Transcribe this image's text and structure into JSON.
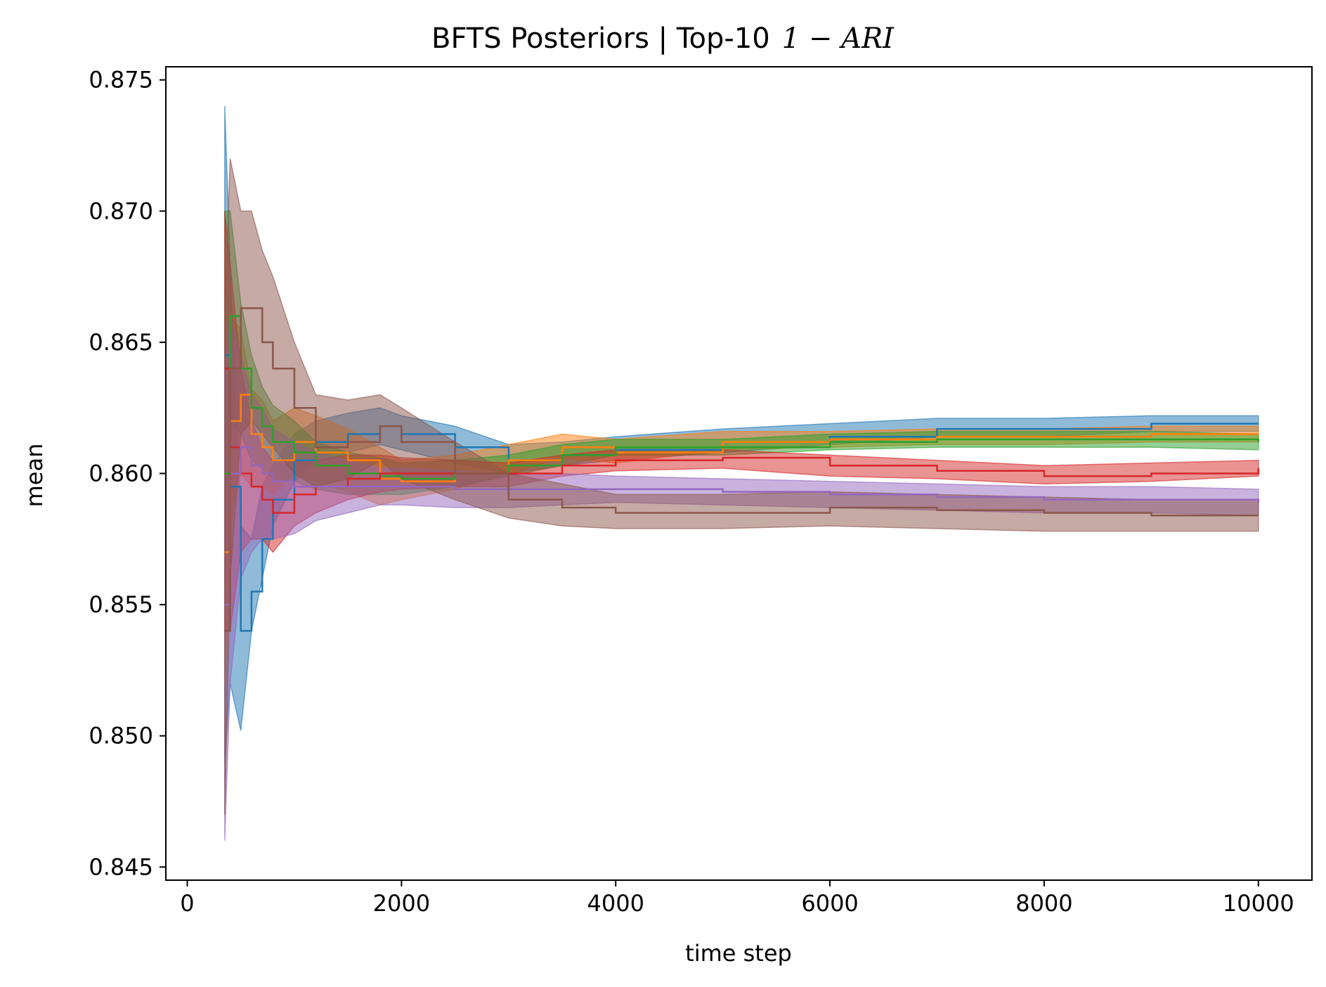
{
  "chart_data": {
    "type": "line",
    "title": "BFTS Posteriors | Top-10",
    "title_math": "1 − ARI",
    "xlabel": "time step",
    "ylabel": "mean",
    "xlim": [
      -200,
      10500
    ],
    "ylim": [
      0.8445,
      0.8755
    ],
    "xticks": [
      0,
      2000,
      4000,
      6000,
      8000,
      10000
    ],
    "xtick_labels": [
      "0",
      "2000",
      "4000",
      "6000",
      "8000",
      "10000"
    ],
    "yticks": [
      0.845,
      0.85,
      0.855,
      0.86,
      0.865,
      0.87,
      0.875
    ],
    "ytick_labels": [
      "0.845",
      "0.850",
      "0.855",
      "0.860",
      "0.865",
      "0.870",
      "0.875"
    ],
    "grid": false,
    "legend": "none",
    "x": [
      350,
      400,
      500,
      600,
      700,
      800,
      1000,
      1200,
      1500,
      1800,
      2000,
      2500,
      3000,
      3500,
      4000,
      5000,
      6000,
      7000,
      8000,
      9000,
      10000
    ],
    "series": [
      {
        "color": "#1f77b4",
        "mean": [
          0.8645,
          0.8595,
          0.854,
          0.8555,
          0.8575,
          0.859,
          0.8605,
          0.8612,
          0.8615,
          0.8618,
          0.8615,
          0.861,
          0.8605,
          0.8607,
          0.8609,
          0.8612,
          0.8614,
          0.8617,
          0.8617,
          0.8619,
          0.8619
        ],
        "lower": [
          0.849,
          0.852,
          0.8502,
          0.854,
          0.856,
          0.858,
          0.8597,
          0.8604,
          0.8608,
          0.8611,
          0.8609,
          0.8604,
          0.86,
          0.8603,
          0.8605,
          0.8608,
          0.8611,
          0.8614,
          0.8614,
          0.8616,
          0.8616
        ],
        "upper": [
          0.874,
          0.868,
          0.858,
          0.8575,
          0.8595,
          0.8603,
          0.8615,
          0.862,
          0.8623,
          0.8625,
          0.8622,
          0.8618,
          0.8611,
          0.8612,
          0.8614,
          0.8617,
          0.8619,
          0.8621,
          0.8621,
          0.8622,
          0.8622
        ]
      },
      {
        "color": "#ff7f0e",
        "mean": [
          0.857,
          0.862,
          0.863,
          0.8615,
          0.861,
          0.8605,
          0.8612,
          0.8608,
          0.8605,
          0.8598,
          0.8597,
          0.86,
          0.8605,
          0.861,
          0.8608,
          0.8612,
          0.8613,
          0.8614,
          0.8614,
          0.8615,
          0.8615
        ],
        "lower": [
          0.852,
          0.858,
          0.86,
          0.8595,
          0.8595,
          0.8592,
          0.86,
          0.8597,
          0.8593,
          0.8588,
          0.859,
          0.8594,
          0.86,
          0.8606,
          0.8604,
          0.8609,
          0.861,
          0.8611,
          0.8611,
          0.8612,
          0.8612
        ],
        "upper": [
          0.862,
          0.866,
          0.8655,
          0.8632,
          0.8628,
          0.862,
          0.8625,
          0.8622,
          0.8617,
          0.861,
          0.8605,
          0.8607,
          0.8611,
          0.8615,
          0.8613,
          0.8616,
          0.8616,
          0.8617,
          0.8617,
          0.8618,
          0.8618
        ]
      },
      {
        "color": "#2ca02c",
        "mean": [
          0.86,
          0.866,
          0.864,
          0.8625,
          0.8618,
          0.8612,
          0.8608,
          0.8603,
          0.86,
          0.8599,
          0.8598,
          0.86,
          0.8603,
          0.8607,
          0.861,
          0.861,
          0.8612,
          0.8613,
          0.8613,
          0.8613,
          0.8612
        ],
        "lower": [
          0.856,
          0.862,
          0.8615,
          0.8605,
          0.8602,
          0.8598,
          0.8597,
          0.8594,
          0.8592,
          0.8592,
          0.8592,
          0.8595,
          0.8599,
          0.8603,
          0.8607,
          0.8607,
          0.8609,
          0.861,
          0.861,
          0.861,
          0.8609
        ],
        "upper": [
          0.87,
          0.87,
          0.8665,
          0.8645,
          0.8633,
          0.8626,
          0.862,
          0.8612,
          0.8608,
          0.8606,
          0.8604,
          0.8605,
          0.8607,
          0.8611,
          0.8613,
          0.8613,
          0.8615,
          0.8616,
          0.8616,
          0.8616,
          0.8615
        ]
      },
      {
        "color": "#d62728",
        "mean": [
          0.864,
          0.861,
          0.86,
          0.8595,
          0.859,
          0.8585,
          0.8592,
          0.8595,
          0.8598,
          0.86,
          0.86,
          0.86,
          0.86,
          0.8603,
          0.8605,
          0.8606,
          0.8603,
          0.8601,
          0.8599,
          0.86,
          0.8602
        ],
        "lower": [
          0.854,
          0.854,
          0.857,
          0.8575,
          0.8575,
          0.857,
          0.858,
          0.8585,
          0.859,
          0.8593,
          0.8594,
          0.8595,
          0.8595,
          0.8599,
          0.8601,
          0.8602,
          0.8599,
          0.8598,
          0.8596,
          0.8597,
          0.8599
        ],
        "upper": [
          0.87,
          0.868,
          0.864,
          0.862,
          0.861,
          0.8605,
          0.8605,
          0.8605,
          0.8607,
          0.8607,
          0.8606,
          0.8605,
          0.8604,
          0.8607,
          0.8609,
          0.8609,
          0.8607,
          0.8605,
          0.8603,
          0.8604,
          0.8605
        ]
      },
      {
        "color": "#9467bd",
        "mean": [
          0.855,
          0.86,
          0.861,
          0.8603,
          0.86,
          0.8597,
          0.8595,
          0.8595,
          0.8595,
          0.8595,
          0.8595,
          0.8594,
          0.8594,
          0.8594,
          0.8594,
          0.8593,
          0.8592,
          0.8591,
          0.859,
          0.859,
          0.8589
        ],
        "lower": [
          0.846,
          0.852,
          0.856,
          0.857,
          0.8575,
          0.8575,
          0.8577,
          0.8582,
          0.8585,
          0.8588,
          0.8588,
          0.8587,
          0.8587,
          0.8588,
          0.8589,
          0.8588,
          0.8587,
          0.8586,
          0.8585,
          0.8585,
          0.8584
        ],
        "upper": [
          0.864,
          0.866,
          0.8645,
          0.863,
          0.8625,
          0.8617,
          0.8612,
          0.8608,
          0.8605,
          0.8602,
          0.8602,
          0.8601,
          0.86,
          0.86,
          0.8599,
          0.8598,
          0.8597,
          0.8596,
          0.8595,
          0.8595,
          0.8594
        ]
      },
      {
        "color": "#8c564b",
        "mean": [
          0.854,
          0.864,
          0.8663,
          0.8663,
          0.865,
          0.864,
          0.8625,
          0.861,
          0.8612,
          0.8618,
          0.8612,
          0.86,
          0.859,
          0.8587,
          0.8585,
          0.8585,
          0.8587,
          0.8586,
          0.8585,
          0.8584,
          0.8584
        ],
        "lower": [
          0.847,
          0.856,
          0.8615,
          0.862,
          0.8615,
          0.861,
          0.86,
          0.8595,
          0.8598,
          0.8605,
          0.8598,
          0.859,
          0.8583,
          0.858,
          0.8579,
          0.8579,
          0.858,
          0.8579,
          0.8578,
          0.8578,
          0.8578
        ],
        "upper": [
          0.866,
          0.872,
          0.87,
          0.87,
          0.8685,
          0.8675,
          0.865,
          0.863,
          0.8628,
          0.863,
          0.8625,
          0.8612,
          0.86,
          0.8596,
          0.8592,
          0.8592,
          0.8593,
          0.8592,
          0.8591,
          0.859,
          0.859
        ]
      }
    ]
  }
}
